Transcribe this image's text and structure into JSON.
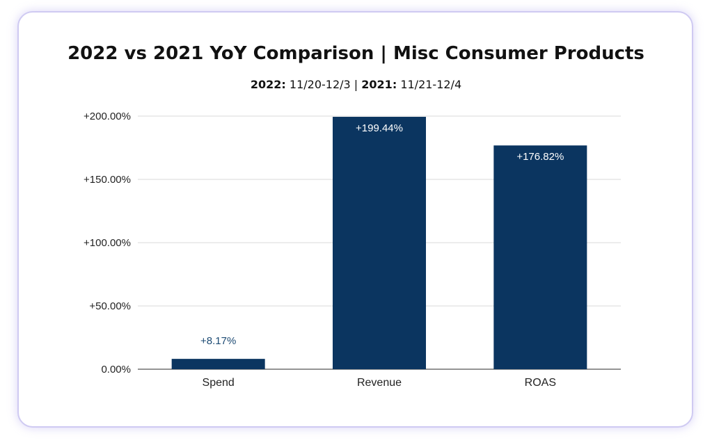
{
  "chart_data": {
    "type": "bar",
    "title": "2022 vs 2021 YoY Comparison | Misc Consumer Products",
    "subtitle": {
      "year_a": "2022:",
      "range_a": "11/20-12/3",
      "separator": "|",
      "year_b": "2021:",
      "range_b": "11/21-12/4"
    },
    "categories": [
      "Spend",
      "Revenue",
      "ROAS"
    ],
    "values": [
      8.17,
      199.44,
      176.82
    ],
    "data_labels": [
      "+8.17%",
      "+199.44%",
      "+176.82%"
    ],
    "y_ticks": [
      0,
      50,
      100,
      150,
      200
    ],
    "y_tick_labels": [
      "0.00%",
      "+50.00%",
      "+100.00%",
      "+150.00%",
      "+200.00%"
    ],
    "ylim": [
      0,
      200
    ],
    "grid": true,
    "xlabel": "",
    "ylabel": "",
    "colors": {
      "bar": "#0b3560",
      "label_inside": "#ffffff",
      "label_outside": "#1c4a73",
      "grid": "#d9d9d9",
      "axis": "#555555",
      "tick_text": "#222222"
    }
  }
}
